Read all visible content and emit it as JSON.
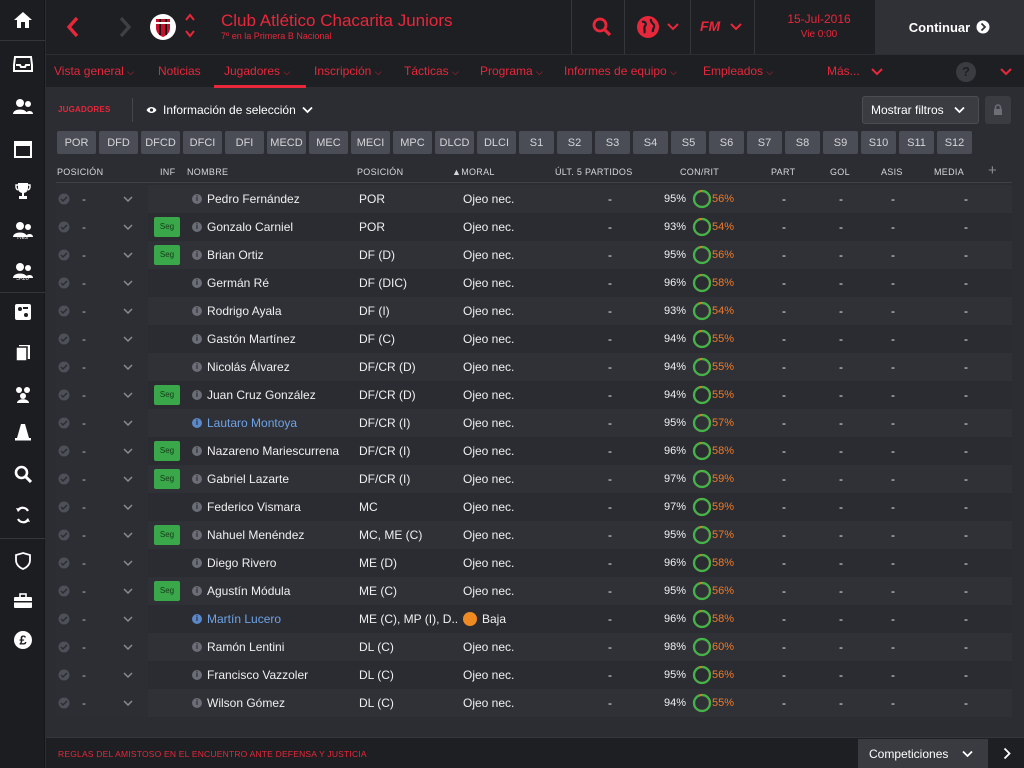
{
  "header": {
    "club_name": "Club Atlético Chacarita Juniors",
    "club_subtitle": "7º en la Primera B Nacional",
    "date": "15-Jul-2016",
    "day_time": "Vie 0:00",
    "brand": "FM",
    "continue_label": "Continuar",
    "accent_color": "#e8273a"
  },
  "sidebar": {
    "items": [
      {
        "icon": "home-icon"
      },
      {
        "icon": "inbox-icon"
      },
      {
        "icon": "squad-icon"
      },
      {
        "icon": "calendar-icon"
      },
      {
        "icon": "trophy-icon"
      },
      {
        "icon": "reserves-icon",
        "tag": "Res"
      },
      {
        "icon": "under20-icon",
        "tag": "S-20"
      },
      {
        "icon": "tactics-board-icon"
      },
      {
        "icon": "documents-icon"
      },
      {
        "icon": "staff-icon"
      },
      {
        "icon": "training-cone-icon"
      },
      {
        "icon": "search-icon"
      },
      {
        "icon": "transfers-icon"
      },
      {
        "icon": "shield-icon"
      },
      {
        "icon": "briefcase-icon"
      },
      {
        "icon": "finances-pound-icon"
      }
    ]
  },
  "nav": {
    "items": [
      {
        "label": "Vista general",
        "caret": true
      },
      {
        "label": "Noticias",
        "caret": false
      },
      {
        "label": "Jugadores",
        "caret": true,
        "active": true
      },
      {
        "label": "Inscripción",
        "caret": true
      },
      {
        "label": "Tácticas",
        "caret": true
      },
      {
        "label": "Programa",
        "caret": true
      },
      {
        "label": "Informes de equipo",
        "caret": true
      },
      {
        "label": "Empleados",
        "caret": true
      },
      {
        "label": "Más...",
        "caret": true
      }
    ],
    "help_label": "?"
  },
  "toolbar": {
    "section_label": "JUGADORES",
    "view_label": "Información de selección",
    "filters_label": "Mostrar filtros"
  },
  "position_filters": [
    "POR",
    "DFD",
    "DFCD",
    "DFCI",
    "DFI",
    "MECD",
    "MEC",
    "MECI",
    "MPC",
    "DLCD",
    "DLCI",
    "S1",
    "S2",
    "S3",
    "S4",
    "S5",
    "S6",
    "S7",
    "S8",
    "S9",
    "S10",
    "S11",
    "S12"
  ],
  "table": {
    "headers": {
      "posicion": "POSICIÓN",
      "inf": "INF",
      "nombre": "NOMBRE",
      "posicion2": "POSICIÓN",
      "moral": "▲MORAL",
      "ult5": "ÚLT. 5 PARTIDOS",
      "conrit": "CON/RIT",
      "part": "PART",
      "gol": "GOL",
      "asis": "ASIS",
      "media": "MEDIA",
      "add": "+"
    },
    "rows": [
      {
        "pos": "-",
        "seg": "",
        "name": "Pedro Fernández",
        "link": false,
        "position": "POR",
        "moral": "Ojeo nec.",
        "ult5": "-",
        "con": "95%",
        "rit": "56%",
        "part": "-",
        "gol": "-",
        "asis": "-",
        "media": "-"
      },
      {
        "pos": "-",
        "seg": "Seg",
        "name": "Gonzalo Carniel",
        "link": false,
        "position": "POR",
        "moral": "Ojeo nec.",
        "ult5": "-",
        "con": "93%",
        "rit": "54%",
        "part": "-",
        "gol": "-",
        "asis": "-",
        "media": "-"
      },
      {
        "pos": "-",
        "seg": "Seg",
        "name": "Brian Ortiz",
        "link": false,
        "position": "DF (D)",
        "moral": "Ojeo nec.",
        "ult5": "-",
        "con": "95%",
        "rit": "56%",
        "part": "-",
        "gol": "-",
        "asis": "-",
        "media": "-"
      },
      {
        "pos": "-",
        "seg": "",
        "name": "Germán Ré",
        "link": false,
        "position": "DF (DIC)",
        "moral": "Ojeo nec.",
        "ult5": "-",
        "con": "96%",
        "rit": "58%",
        "part": "-",
        "gol": "-",
        "asis": "-",
        "media": "-"
      },
      {
        "pos": "-",
        "seg": "",
        "name": "Rodrigo Ayala",
        "link": false,
        "position": "DF (I)",
        "moral": "Ojeo nec.",
        "ult5": "-",
        "con": "93%",
        "rit": "54%",
        "part": "-",
        "gol": "-",
        "asis": "-",
        "media": "-"
      },
      {
        "pos": "-",
        "seg": "",
        "name": "Gastón Martínez",
        "link": false,
        "position": "DF (C)",
        "moral": "Ojeo nec.",
        "ult5": "-",
        "con": "94%",
        "rit": "55%",
        "part": "-",
        "gol": "-",
        "asis": "-",
        "media": "-"
      },
      {
        "pos": "-",
        "seg": "",
        "name": "Nicolás Álvarez",
        "link": false,
        "position": "DF/CR (D)",
        "moral": "Ojeo nec.",
        "ult5": "-",
        "con": "94%",
        "rit": "55%",
        "part": "-",
        "gol": "-",
        "asis": "-",
        "media": "-"
      },
      {
        "pos": "-",
        "seg": "Seg",
        "name": "Juan Cruz González",
        "link": false,
        "position": "DF/CR (D)",
        "moral": "Ojeo nec.",
        "ult5": "-",
        "con": "94%",
        "rit": "55%",
        "part": "-",
        "gol": "-",
        "asis": "-",
        "media": "-"
      },
      {
        "pos": "-",
        "seg": "",
        "name": "Lautaro Montoya",
        "link": true,
        "position": "DF/CR (I)",
        "moral": "Ojeo nec.",
        "ult5": "-",
        "con": "95%",
        "rit": "57%",
        "part": "-",
        "gol": "-",
        "asis": "-",
        "media": "-"
      },
      {
        "pos": "-",
        "seg": "Seg",
        "name": "Nazareno Mariescurrena",
        "link": false,
        "position": "DF/CR (I)",
        "moral": "Ojeo nec.",
        "ult5": "-",
        "con": "96%",
        "rit": "58%",
        "part": "-",
        "gol": "-",
        "asis": "-",
        "media": "-"
      },
      {
        "pos": "-",
        "seg": "Seg",
        "name": "Gabriel Lazarte",
        "link": false,
        "position": "DF/CR (I)",
        "moral": "Ojeo nec.",
        "ult5": "-",
        "con": "97%",
        "rit": "59%",
        "part": "-",
        "gol": "-",
        "asis": "-",
        "media": "-"
      },
      {
        "pos": "-",
        "seg": "",
        "name": "Federico Vismara",
        "link": false,
        "position": "MC",
        "moral": "Ojeo nec.",
        "ult5": "-",
        "con": "97%",
        "rit": "59%",
        "part": "-",
        "gol": "-",
        "asis": "-",
        "media": "-"
      },
      {
        "pos": "-",
        "seg": "Seg",
        "name": "Nahuel Menéndez",
        "link": false,
        "position": "MC, ME (C)",
        "moral": "Ojeo nec.",
        "ult5": "-",
        "con": "95%",
        "rit": "57%",
        "part": "-",
        "gol": "-",
        "asis": "-",
        "media": "-"
      },
      {
        "pos": "-",
        "seg": "",
        "name": "Diego Rivero",
        "link": false,
        "position": "ME (D)",
        "moral": "Ojeo nec.",
        "ult5": "-",
        "con": "96%",
        "rit": "58%",
        "part": "-",
        "gol": "-",
        "asis": "-",
        "media": "-"
      },
      {
        "pos": "-",
        "seg": "Seg",
        "name": "Agustín Módula",
        "link": false,
        "position": "ME (C)",
        "moral": "Ojeo nec.",
        "ult5": "-",
        "con": "95%",
        "rit": "56%",
        "part": "-",
        "gol": "-",
        "asis": "-",
        "media": "-"
      },
      {
        "pos": "-",
        "seg": "",
        "name": "Martín Lucero",
        "link": true,
        "position": "ME (C), MP (I), D...",
        "moral": "Baja",
        "moral_badge": true,
        "ult5": "-",
        "con": "96%",
        "rit": "58%",
        "part": "-",
        "gol": "-",
        "asis": "-",
        "media": "-"
      },
      {
        "pos": "-",
        "seg": "",
        "name": "Ramón Lentini",
        "link": false,
        "position": "DL (C)",
        "moral": "Ojeo nec.",
        "ult5": "-",
        "con": "98%",
        "rit": "60%",
        "part": "-",
        "gol": "-",
        "asis": "-",
        "media": "-"
      },
      {
        "pos": "-",
        "seg": "",
        "name": "Francisco Vazzoler",
        "link": false,
        "position": "DL (C)",
        "moral": "Ojeo nec.",
        "ult5": "-",
        "con": "95%",
        "rit": "56%",
        "part": "-",
        "gol": "-",
        "asis": "-",
        "media": "-"
      },
      {
        "pos": "-",
        "seg": "",
        "name": "Wilson Gómez",
        "link": false,
        "position": "DL (C)",
        "moral": "Ojeo nec.",
        "ult5": "-",
        "con": "94%",
        "rit": "55%",
        "part": "-",
        "gol": "-",
        "asis": "-",
        "media": "-"
      }
    ]
  },
  "footer": {
    "news_text": "REGLAS DEL AMISTOSO EN EL ENCUENTRO ANTE DEFENSA Y JUSTICIA",
    "competitions_label": "Competiciones"
  }
}
